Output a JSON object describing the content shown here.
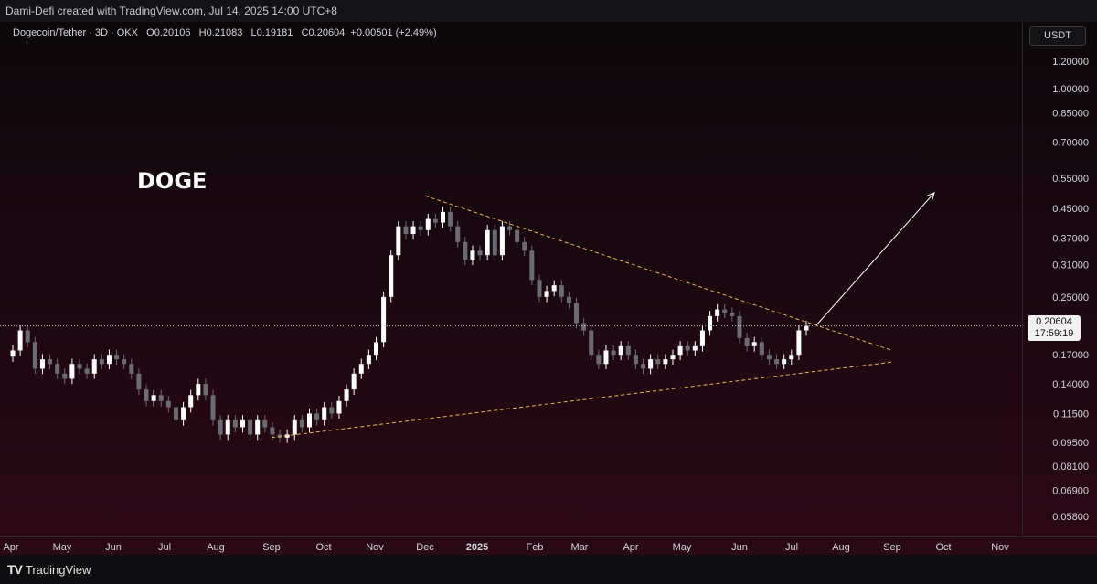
{
  "header": {
    "attribution": "Dami-Defi created with TradingView.com, Jul 14, 2025 14:00 UTC+8"
  },
  "legend": {
    "symbol": "Dogecoin/Tether · 3D · OKX",
    "open_label": "O",
    "open": "0.20106",
    "high_label": "H",
    "high": "0.21083",
    "low_label": "L",
    "low": "0.19181",
    "close_label": "C",
    "close": "0.20604",
    "change": "+0.00501 (+2.49%)"
  },
  "currency_button": "USDT",
  "annotation_text": "DOGE",
  "last_price": {
    "value": "0.20604",
    "countdown": "17:59:19"
  },
  "footer": {
    "brand": "TradingView",
    "logo": "TV"
  },
  "colors": {
    "up_candle": "#ffffff",
    "down_candle": "#6b6b73",
    "trendline": "#e8b84a",
    "arrow": "#ffffff",
    "background_top": "#0c080a",
    "background_bottom": "#2a0814"
  },
  "chart_data": {
    "type": "candlestick",
    "scale": "log",
    "interval": "3D",
    "grid": false,
    "y_ticks": [
      "1.20000",
      "1.00000",
      "0.85000",
      "0.70000",
      "0.55000",
      "0.45000",
      "0.37000",
      "0.31000",
      "0.25000",
      "0.17000",
      "0.14000",
      "0.11500",
      "0.09500",
      "0.08100",
      "0.06900",
      "0.05800"
    ],
    "x_ticks": [
      "Apr",
      "May",
      "Jun",
      "Jul",
      "Aug",
      "Sep",
      "Oct",
      "Nov",
      "Dec",
      "2025",
      "Feb",
      "Mar",
      "Apr",
      "May",
      "Jun",
      "Jul",
      "Aug",
      "Sep",
      "Oct",
      "Nov"
    ],
    "x_ticks_bold": [
      "2025"
    ],
    "closes": [
      0.175,
      0.2,
      0.185,
      0.155,
      0.165,
      0.16,
      0.15,
      0.145,
      0.16,
      0.155,
      0.15,
      0.165,
      0.16,
      0.17,
      0.165,
      0.16,
      0.15,
      0.135,
      0.125,
      0.13,
      0.125,
      0.12,
      0.11,
      0.12,
      0.13,
      0.14,
      0.13,
      0.11,
      0.1,
      0.11,
      0.105,
      0.11,
      0.1,
      0.11,
      0.105,
      0.1,
      0.098,
      0.1,
      0.11,
      0.105,
      0.115,
      0.11,
      0.12,
      0.115,
      0.125,
      0.135,
      0.15,
      0.16,
      0.17,
      0.185,
      0.25,
      0.33,
      0.4,
      0.38,
      0.4,
      0.39,
      0.42,
      0.41,
      0.44,
      0.4,
      0.36,
      0.32,
      0.34,
      0.33,
      0.39,
      0.33,
      0.4,
      0.39,
      0.36,
      0.34,
      0.28,
      0.25,
      0.26,
      0.27,
      0.25,
      0.24,
      0.21,
      0.2,
      0.17,
      0.16,
      0.175,
      0.17,
      0.18,
      0.17,
      0.16,
      0.155,
      0.165,
      0.16,
      0.165,
      0.17,
      0.18,
      0.175,
      0.18,
      0.2,
      0.22,
      0.23,
      0.225,
      0.22,
      0.19,
      0.18,
      0.185,
      0.17,
      0.165,
      0.16,
      0.165,
      0.17,
      0.2,
      0.206
    ],
    "trendlines": [
      {
        "name": "upper",
        "start": {
          "date": "Dec 2024",
          "price": 0.49
        },
        "end": {
          "date": "Sep 2025",
          "price": 0.175
        },
        "style": "dashed"
      },
      {
        "name": "lower",
        "start": {
          "date": "Sep 2024",
          "price": 0.098
        },
        "end": {
          "date": "Sep 2025",
          "price": 0.162
        },
        "style": "dashed"
      }
    ],
    "arrow": {
      "start": {
        "date": "Jul 2025",
        "price": 0.207
      },
      "end": {
        "date": "Oct 2025",
        "price": 0.5
      }
    },
    "last_price_line": 0.20604
  }
}
